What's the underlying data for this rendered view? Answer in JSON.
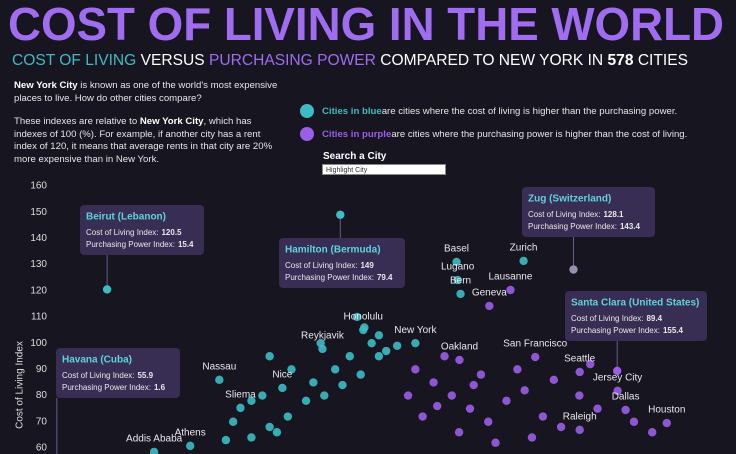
{
  "chart_data": {
    "type": "scatter",
    "title": "COST OF LIVING IN THE WORLD",
    "subtitle": [
      "COST OF LIVING",
      "VERSUS",
      "PURCHASING POWER",
      "COMPARED TO NEW YORK IN",
      "578",
      "CITIES"
    ],
    "intro": [
      [
        "New York City",
        " is known as one of the world's most expensive places to live. How do other cities compare?"
      ],
      [
        "These indexes are relative to ",
        "New York City",
        ", which has indexes of 100 (%). For example, if another city has a rent index of 120, it means that average rents in that city are 20% more expensive than in New York."
      ]
    ],
    "legend_notes": [
      " are cities where the cost of living is higher than the purchasing power.",
      " are cities where the purchasing power is higher than the cost of living."
    ],
    "search": {
      "label": "Search a City",
      "placeholder": "Highlight City"
    },
    "y_label": "Cost of Living Index",
    "ylim": [
      58,
      163
    ],
    "yticks": [
      60,
      70,
      80,
      90,
      100,
      110,
      120,
      130,
      140,
      150,
      160
    ],
    "xlim": [
      -14,
      188
    ],
    "background": "#17151f",
    "series": [
      {
        "name": "Cities in blue",
        "color": "#3cbcc4",
        "labels": [
          "Basel",
          "Lugano",
          "Bern",
          "Zurich",
          "Honolulu",
          "Reykjavik",
          "New York",
          "Nassau",
          "Nice",
          "Sliema",
          "Athens",
          "Addis Ababa",
          null,
          null,
          null,
          null,
          null,
          null,
          null,
          null,
          null,
          null,
          null,
          null,
          null,
          null,
          null,
          null,
          null,
          null,
          null,
          null,
          null,
          null,
          null,
          null,
          null
        ],
        "x": [
          111.3,
          111.6,
          112.4,
          129.7,
          85.7,
          74.5,
          100,
          46.2,
          63.5,
          52.0,
          38.2,
          28.3,
          60,
          65,
          70,
          58,
          72,
          78,
          82,
          88,
          86,
          90,
          75,
          62,
          55,
          80,
          85,
          90,
          55,
          50,
          66,
          74,
          92,
          84,
          60,
          48,
          95
        ],
        "values": [
          131.0,
          124.1,
          118.8,
          131.4,
          105.0,
          97.8,
          100,
          86.0,
          82.9,
          75.3,
          60.8,
          58.5,
          68,
          72,
          78,
          80,
          85,
          90,
          95,
          100,
          106,
          103,
          80,
          66,
          64,
          84,
          88,
          95,
          78,
          70,
          90,
          100,
          97,
          110,
          95,
          63,
          99
        ]
      },
      {
        "name": "Cities in purple",
        "color": "#9a5ee8",
        "labels": [
          "Geneva",
          "Lausanne",
          "Oakland",
          "San Francisco",
          "Seattle",
          "Jersey City",
          "Dallas",
          "Houston",
          "Raleigh",
          null,
          null,
          null,
          null,
          null,
          null,
          null,
          null,
          null,
          null,
          null,
          null,
          null,
          null,
          null,
          null,
          null,
          null,
          null,
          null,
          null,
          null,
          null,
          null,
          null
        ],
        "x": [
          120.3,
          126.1,
          112.1,
          132.9,
          145.1,
          155.5,
          157.7,
          169.0,
          145.1,
          100,
          105,
          110,
          115,
          120,
          125,
          130,
          135,
          140,
          108,
          118,
          128,
          138,
          145,
          150,
          160,
          102,
          112,
          122,
          98,
          106,
          116,
          132,
          148,
          165
        ],
        "values": [
          114.2,
          120.3,
          93.6,
          94.7,
          89.0,
          81.8,
          74.5,
          69.5,
          66.9,
          90,
          85,
          80,
          75,
          70,
          78,
          82,
          72,
          68,
          95,
          88,
          90,
          86,
          80,
          75,
          70,
          72,
          66,
          62,
          80,
          76,
          84,
          64,
          92,
          66
        ]
      }
    ],
    "tooltip_labels": [
      "Cost of Living Index:",
      "Purchasing Power Index:"
    ],
    "highlights": [
      {
        "name": "Beirut (Lebanon)",
        "cost_of_living": 120.5,
        "purchasing_power": 15.4,
        "color": "#3cbcc4"
      },
      {
        "name": "Hamilton (Bermuda)",
        "cost_of_living": 149.0,
        "purchasing_power": 79.4,
        "color": "#3cbcc4"
      },
      {
        "name": "Zug (Switzerland)",
        "cost_of_living": 128.1,
        "purchasing_power": 143.4,
        "color": "#9a8fb0"
      },
      {
        "name": "Santa Clara (United States)",
        "cost_of_living": 89.4,
        "purchasing_power": 155.4,
        "color": "#9a5ee8"
      },
      {
        "name": "Havana (Cuba)",
        "cost_of_living": 55.9,
        "purchasing_power": 1.6,
        "color": "#3cbcc4"
      }
    ]
  }
}
